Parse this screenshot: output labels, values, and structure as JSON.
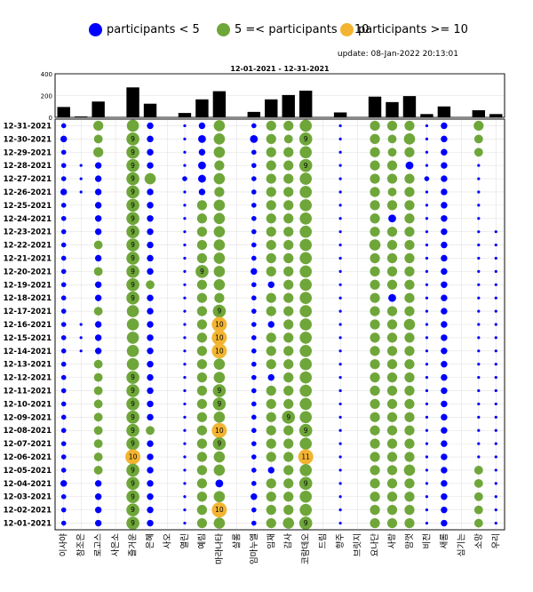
{
  "legend": {
    "items": [
      {
        "label": "participants < 5",
        "color": "#0000ff"
      },
      {
        "label": "5 =< participants < 10",
        "color": "#6fa63a"
      },
      {
        "label": "participants >= 10",
        "color": "#f2b431"
      }
    ]
  },
  "update_text": "update: 08-Jan-2022 20:13:01",
  "chart_data": {
    "type": "scatter",
    "title": "12-01-2021  - 12-31-2021",
    "grid": true,
    "legend_placement": "top",
    "colors": {
      "low": "#0000ff",
      "mid": "#6fa63a",
      "high": "#f2b431",
      "bar": "#000000"
    },
    "categories": [
      "이사야",
      "참조은",
      "로고스",
      "사은소",
      "즐거운",
      "은혜",
      "사오",
      "열린",
      "예림",
      "마라나타",
      "살롬",
      "임마누엘",
      "임재",
      "감사",
      "코람데오",
      "드림",
      "향주",
      "브릿지",
      "요나단",
      "사랑",
      "맘껏",
      "비전",
      "새롬",
      "심기는",
      "소망",
      "우리"
    ],
    "dates": [
      "12-31-2021",
      "12-30-2021",
      "12-29-2021",
      "12-28-2021",
      "12-27-2021",
      "12-26-2021",
      "12-25-2021",
      "12-24-2021",
      "12-23-2021",
      "12-22-2021",
      "12-21-2021",
      "12-20-2021",
      "12-19-2021",
      "12-18-2021",
      "12-17-2021",
      "12-16-2021",
      "12-15-2021",
      "12-14-2021",
      "12-13-2021",
      "12-12-2021",
      "12-11-2021",
      "12-10-2021",
      "12-09-2021",
      "12-08-2021",
      "12-07-2021",
      "12-06-2021",
      "12-05-2021",
      "12-04-2021",
      "12-03-2021",
      "12-02-2021",
      "12-01-2021"
    ],
    "top_bar": {
      "ylim": [
        0,
        400
      ],
      "yticks": [
        "0",
        "200",
        "400"
      ],
      "values": [
        95,
        8,
        145,
        0,
        275,
        125,
        0,
        40,
        165,
        240,
        0,
        50,
        165,
        205,
        245,
        0,
        45,
        0,
        190,
        140,
        195,
        30,
        100,
        0,
        65,
        30
      ]
    },
    "matrix": [
      [
        2,
        0,
        6,
        0,
        8,
        3,
        0,
        1,
        3,
        7,
        0,
        2,
        6,
        6,
        8,
        0,
        1,
        0,
        6,
        6,
        6,
        1,
        3,
        0,
        6,
        0
      ],
      [
        3,
        0,
        5,
        0,
        9,
        3,
        0,
        1,
        4,
        7,
        0,
        4,
        6,
        5,
        9,
        0,
        1,
        0,
        6,
        5,
        7,
        1,
        3,
        0,
        5,
        0
      ],
      [
        2,
        0,
        6,
        0,
        9,
        3,
        0,
        1,
        3,
        7,
        0,
        2,
        6,
        6,
        8,
        0,
        1,
        0,
        6,
        5,
        6,
        1,
        3,
        0,
        5,
        0
      ],
      [
        2,
        1,
        3,
        0,
        9,
        3,
        0,
        1,
        4,
        6,
        0,
        2,
        6,
        6,
        9,
        0,
        1,
        0,
        6,
        6,
        4,
        1,
        3,
        0,
        1,
        0
      ],
      [
        2,
        1,
        3,
        0,
        9,
        7,
        0,
        2,
        4,
        7,
        0,
        2,
        6,
        6,
        8,
        0,
        1,
        0,
        6,
        6,
        6,
        2,
        3,
        0,
        1,
        0
      ],
      [
        3,
        1,
        3,
        0,
        9,
        3,
        0,
        1,
        3,
        6,
        0,
        2,
        6,
        6,
        8,
        0,
        1,
        0,
        6,
        5,
        6,
        1,
        3,
        0,
        1,
        0
      ],
      [
        2,
        0,
        3,
        0,
        9,
        3,
        0,
        1,
        6,
        7,
        0,
        2,
        6,
        6,
        8,
        0,
        1,
        0,
        6,
        6,
        6,
        1,
        3,
        0,
        1,
        0
      ],
      [
        2,
        0,
        3,
        0,
        9,
        3,
        0,
        1,
        6,
        7,
        0,
        2,
        6,
        6,
        8,
        0,
        1,
        0,
        6,
        4,
        6,
        1,
        3,
        0,
        1,
        0
      ],
      [
        2,
        0,
        3,
        0,
        9,
        3,
        0,
        1,
        6,
        7,
        0,
        2,
        6,
        6,
        8,
        0,
        1,
        0,
        6,
        6,
        6,
        1,
        3,
        0,
        1,
        1
      ],
      [
        2,
        0,
        5,
        0,
        9,
        3,
        0,
        1,
        6,
        7,
        0,
        2,
        6,
        6,
        8,
        0,
        1,
        0,
        7,
        6,
        6,
        1,
        3,
        0,
        1,
        1
      ],
      [
        2,
        0,
        3,
        0,
        9,
        3,
        0,
        1,
        6,
        7,
        0,
        2,
        6,
        6,
        8,
        0,
        1,
        0,
        6,
        6,
        6,
        1,
        3,
        0,
        1,
        1
      ],
      [
        2,
        0,
        5,
        0,
        9,
        3,
        0,
        1,
        9,
        7,
        0,
        3,
        6,
        6,
        8,
        0,
        1,
        0,
        6,
        6,
        6,
        1,
        3,
        0,
        1,
        1
      ],
      [
        2,
        0,
        3,
        0,
        9,
        5,
        0,
        1,
        6,
        7,
        0,
        2,
        3,
        6,
        8,
        0,
        1,
        0,
        6,
        6,
        6,
        1,
        3,
        0,
        1,
        1
      ],
      [
        2,
        0,
        3,
        0,
        9,
        3,
        0,
        1,
        6,
        6,
        0,
        2,
        6,
        6,
        8,
        0,
        1,
        0,
        6,
        4,
        6,
        1,
        3,
        0,
        1,
        1
      ],
      [
        2,
        0,
        5,
        0,
        8,
        3,
        0,
        1,
        6,
        9,
        0,
        2,
        6,
        6,
        8,
        0,
        1,
        0,
        6,
        6,
        6,
        1,
        3,
        0,
        1,
        1
      ],
      [
        2,
        1,
        3,
        0,
        8,
        3,
        0,
        1,
        6,
        10,
        0,
        2,
        3,
        6,
        8,
        0,
        1,
        0,
        6,
        6,
        7,
        1,
        3,
        0,
        1,
        1
      ],
      [
        2,
        1,
        3,
        0,
        8,
        3,
        0,
        1,
        6,
        10,
        0,
        2,
        6,
        6,
        8,
        0,
        1,
        0,
        6,
        6,
        6,
        1,
        3,
        0,
        1,
        1
      ],
      [
        2,
        1,
        3,
        0,
        8,
        3,
        0,
        1,
        6,
        10,
        0,
        2,
        6,
        6,
        8,
        0,
        1,
        0,
        6,
        6,
        6,
        1,
        3,
        0,
        1,
        1
      ],
      [
        2,
        0,
        5,
        0,
        8,
        3,
        0,
        1,
        6,
        7,
        0,
        2,
        6,
        6,
        8,
        0,
        1,
        0,
        6,
        6,
        6,
        1,
        3,
        0,
        1,
        1
      ],
      [
        2,
        0,
        5,
        0,
        9,
        3,
        0,
        1,
        6,
        7,
        0,
        2,
        3,
        6,
        8,
        0,
        1,
        0,
        6,
        6,
        6,
        1,
        3,
        0,
        1,
        1
      ],
      [
        2,
        0,
        5,
        0,
        9,
        3,
        0,
        1,
        6,
        9,
        0,
        2,
        6,
        6,
        8,
        0,
        1,
        0,
        6,
        6,
        6,
        1,
        3,
        0,
        1,
        1
      ],
      [
        2,
        0,
        5,
        0,
        9,
        3,
        0,
        1,
        6,
        9,
        0,
        2,
        6,
        6,
        8,
        0,
        1,
        0,
        6,
        6,
        6,
        1,
        3,
        0,
        1,
        1
      ],
      [
        2,
        0,
        5,
        0,
        9,
        3,
        0,
        1,
        6,
        7,
        0,
        2,
        6,
        9,
        8,
        0,
        1,
        0,
        6,
        6,
        6,
        1,
        3,
        0,
        1,
        1
      ],
      [
        2,
        0,
        5,
        0,
        9,
        5,
        0,
        1,
        6,
        10,
        0,
        2,
        6,
        6,
        9,
        0,
        1,
        0,
        6,
        6,
        6,
        1,
        3,
        0,
        1,
        1
      ],
      [
        2,
        0,
        5,
        0,
        9,
        3,
        0,
        1,
        6,
        9,
        0,
        2,
        6,
        6,
        8,
        0,
        1,
        0,
        6,
        6,
        6,
        1,
        3,
        0,
        1,
        1
      ],
      [
        2,
        0,
        5,
        0,
        10,
        3,
        0,
        1,
        6,
        7,
        0,
        2,
        6,
        6,
        11,
        0,
        1,
        0,
        6,
        6,
        6,
        1,
        3,
        0,
        1,
        1
      ],
      [
        2,
        0,
        5,
        0,
        9,
        3,
        0,
        1,
        6,
        7,
        0,
        2,
        3,
        6,
        8,
        0,
        1,
        0,
        6,
        6,
        7,
        1,
        3,
        0,
        5,
        1
      ],
      [
        3,
        0,
        3,
        0,
        9,
        3,
        0,
        1,
        6,
        4,
        0,
        2,
        6,
        6,
        9,
        0,
        1,
        0,
        6,
        6,
        6,
        1,
        3,
        0,
        5,
        1
      ],
      [
        2,
        0,
        3,
        0,
        9,
        3,
        0,
        1,
        6,
        7,
        0,
        3,
        6,
        6,
        8,
        0,
        1,
        0,
        6,
        6,
        6,
        1,
        3,
        0,
        5,
        1
      ],
      [
        2,
        0,
        3,
        0,
        9,
        3,
        0,
        1,
        6,
        10,
        0,
        2,
        6,
        6,
        8,
        0,
        1,
        0,
        6,
        6,
        6,
        1,
        3,
        0,
        5,
        1
      ],
      [
        2,
        0,
        3,
        0,
        9,
        3,
        0,
        1,
        6,
        7,
        0,
        2,
        6,
        7,
        9,
        0,
        1,
        0,
        6,
        6,
        6,
        1,
        3,
        0,
        5,
        1
      ]
    ]
  }
}
